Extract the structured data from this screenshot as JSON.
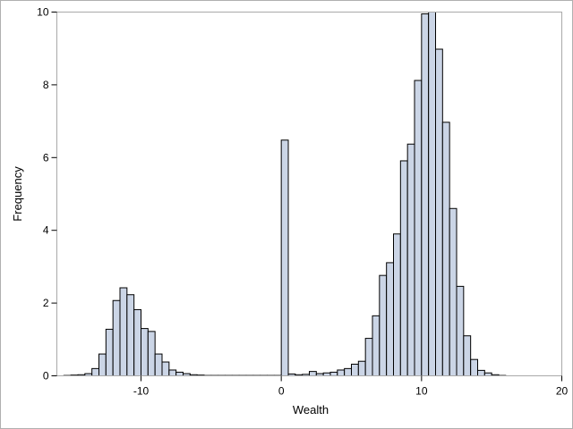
{
  "chart_data": {
    "type": "bar",
    "subtype": "histogram",
    "title": "",
    "xlabel": "Wealth",
    "ylabel": "Frequency",
    "xlim": [
      -16,
      20
    ],
    "ylim": [
      0,
      10
    ],
    "x_ticks": [
      -10,
      0,
      10,
      20
    ],
    "y_ticks": [
      0,
      2,
      4,
      6,
      8,
      10
    ],
    "bin_width": 0.5,
    "grid": false,
    "legend": "none",
    "colors": {
      "bar_fill": "#cbd5e6",
      "bar_stroke": "#000000",
      "frame": "#b0b0b0"
    },
    "bins": [
      {
        "start": -15.5,
        "value": 0.01
      },
      {
        "start": -15.0,
        "value": 0.02
      },
      {
        "start": -14.5,
        "value": 0.03
      },
      {
        "start": -14.0,
        "value": 0.06
      },
      {
        "start": -13.5,
        "value": 0.2
      },
      {
        "start": -13.0,
        "value": 0.6
      },
      {
        "start": -12.5,
        "value": 1.28
      },
      {
        "start": -12.0,
        "value": 2.07
      },
      {
        "start": -11.5,
        "value": 2.42
      },
      {
        "start": -11.0,
        "value": 2.23
      },
      {
        "start": -10.5,
        "value": 1.82
      },
      {
        "start": -10.0,
        "value": 1.3
      },
      {
        "start": -9.5,
        "value": 1.22
      },
      {
        "start": -9.0,
        "value": 0.6
      },
      {
        "start": -8.5,
        "value": 0.38
      },
      {
        "start": -8.0,
        "value": 0.16
      },
      {
        "start": -7.5,
        "value": 0.1
      },
      {
        "start": -7.0,
        "value": 0.06
      },
      {
        "start": -6.5,
        "value": 0.03
      },
      {
        "start": -6.0,
        "value": 0.02
      },
      {
        "start": -5.5,
        "value": 0.01
      },
      {
        "start": -5.0,
        "value": 0.01
      },
      {
        "start": -4.5,
        "value": 0.01
      },
      {
        "start": -4.0,
        "value": 0.01
      },
      {
        "start": -3.5,
        "value": 0.01
      },
      {
        "start": -3.0,
        "value": 0.01
      },
      {
        "start": -2.5,
        "value": 0.01
      },
      {
        "start": -2.0,
        "value": 0.01
      },
      {
        "start": -1.5,
        "value": 0.01
      },
      {
        "start": -1.0,
        "value": 0.01
      },
      {
        "start": -0.5,
        "value": 0.01
      },
      {
        "start": 0.0,
        "value": 6.48
      },
      {
        "start": 0.5,
        "value": 0.05
      },
      {
        "start": 1.0,
        "value": 0.03
      },
      {
        "start": 1.5,
        "value": 0.04
      },
      {
        "start": 2.0,
        "value": 0.12
      },
      {
        "start": 2.5,
        "value": 0.06
      },
      {
        "start": 3.0,
        "value": 0.08
      },
      {
        "start": 3.5,
        "value": 0.1
      },
      {
        "start": 4.0,
        "value": 0.16
      },
      {
        "start": 4.5,
        "value": 0.2
      },
      {
        "start": 5.0,
        "value": 0.32
      },
      {
        "start": 5.5,
        "value": 0.4
      },
      {
        "start": 6.0,
        "value": 1.03
      },
      {
        "start": 6.5,
        "value": 1.65
      },
      {
        "start": 7.0,
        "value": 2.76
      },
      {
        "start": 7.5,
        "value": 3.11
      },
      {
        "start": 8.0,
        "value": 3.9
      },
      {
        "start": 8.5,
        "value": 5.91
      },
      {
        "start": 9.0,
        "value": 6.37
      },
      {
        "start": 9.5,
        "value": 8.12
      },
      {
        "start": 10.0,
        "value": 9.95
      },
      {
        "start": 10.5,
        "value": 10.0
      },
      {
        "start": 11.0,
        "value": 8.98
      },
      {
        "start": 11.5,
        "value": 6.97
      },
      {
        "start": 12.0,
        "value": 4.6
      },
      {
        "start": 12.5,
        "value": 2.46
      },
      {
        "start": 13.0,
        "value": 1.1
      },
      {
        "start": 13.5,
        "value": 0.45
      },
      {
        "start": 14.0,
        "value": 0.15
      },
      {
        "start": 14.5,
        "value": 0.08
      },
      {
        "start": 15.0,
        "value": 0.03
      },
      {
        "start": 15.5,
        "value": 0.01
      }
    ]
  }
}
